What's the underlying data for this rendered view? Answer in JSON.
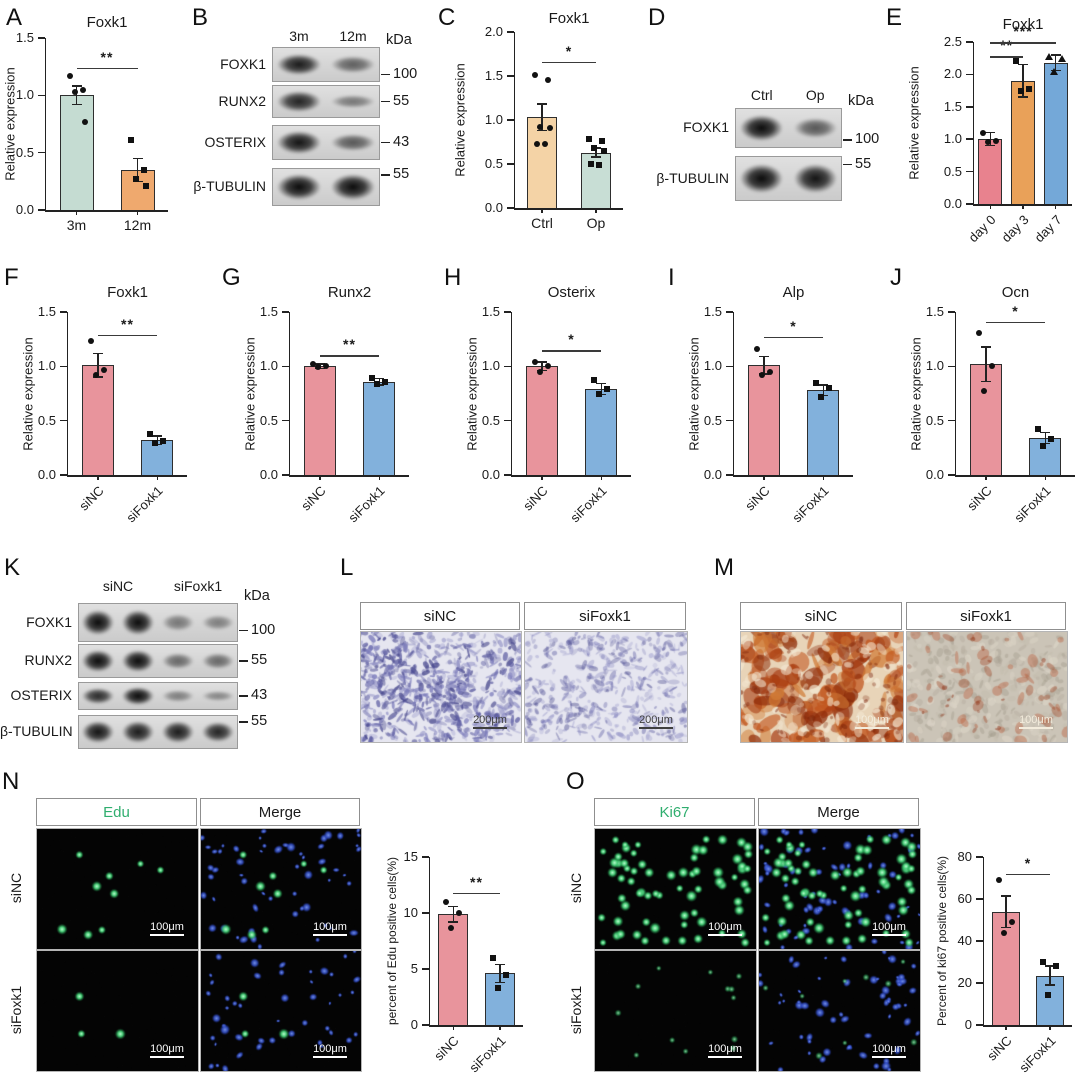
{
  "panels": {
    "A": {
      "letter": "A"
    },
    "B": {
      "letter": "B"
    },
    "C": {
      "letter": "C"
    },
    "D": {
      "letter": "D"
    },
    "E": {
      "letter": "E"
    },
    "F": {
      "letter": "F"
    },
    "G": {
      "letter": "G"
    },
    "H": {
      "letter": "H"
    },
    "I": {
      "letter": "I"
    },
    "J": {
      "letter": "J"
    },
    "K": {
      "letter": "K"
    },
    "L": {
      "letter": "L"
    },
    "M": {
      "letter": "M"
    },
    "N": {
      "letter": "N"
    },
    "O": {
      "letter": "O"
    }
  },
  "chart_data": [
    {
      "panel": "A",
      "type": "bar",
      "title": "Foxk1",
      "ylabel": "Relative expression",
      "ylim": [
        0,
        1.5
      ],
      "yticks": [
        "0.0",
        "0.5",
        "1.0",
        "1.5"
      ],
      "categories": [
        "3m",
        "12m"
      ],
      "values": [
        1.0,
        0.35
      ],
      "errors": [
        0.08,
        0.1
      ],
      "colors": [
        "#c5dcd2",
        "#efa96e"
      ],
      "outline": "#2e2e2e",
      "points": [
        [
          1.17,
          1.05,
          1.03,
          0.77
        ],
        [
          0.61,
          0.35,
          0.27,
          0.21
        ]
      ],
      "point_shapes": [
        "circle",
        "square"
      ],
      "sig": [
        {
          "from": 0,
          "to": 1,
          "y": 1.24,
          "label": "**"
        }
      ],
      "x_rotation": 0
    },
    {
      "panel": "C",
      "type": "bar",
      "title": "Foxk1",
      "ylabel": "Relative expression",
      "ylim": [
        0,
        2.0
      ],
      "yticks": [
        "0.0",
        "0.5",
        "1.0",
        "1.5",
        "2.0"
      ],
      "categories": [
        "Ctrl",
        "Op"
      ],
      "values": [
        1.03,
        0.63
      ],
      "errors": [
        0.15,
        0.05
      ],
      "colors": [
        "#f4d3a6",
        "#c8ded5"
      ],
      "outline": "#2e2e2e",
      "points": [
        [
          1.51,
          1.46,
          0.92,
          0.91,
          0.73,
          0.73
        ],
        [
          0.78,
          0.76,
          0.68,
          0.65,
          0.5,
          0.49
        ]
      ],
      "point_shapes": [
        "circle",
        "square"
      ],
      "sig": [
        {
          "from": 0,
          "to": 1,
          "y": 1.66,
          "label": "*"
        }
      ],
      "x_rotation": 0
    },
    {
      "panel": "E",
      "type": "bar",
      "title": "Foxk1",
      "ylabel": "Relative expression",
      "ylim": [
        0,
        2.5
      ],
      "yticks": [
        "0.0",
        "0.5",
        "1.0",
        "1.5",
        "2.0",
        "2.5"
      ],
      "categories": [
        "day 0",
        "day 3",
        "day 7"
      ],
      "values": [
        1.0,
        1.9,
        2.18
      ],
      "errors": [
        0.1,
        0.25,
        0.12
      ],
      "colors": [
        "#e8828e",
        "#e9a159",
        "#74a8d8"
      ],
      "outline": "#2e2e2e",
      "points": [
        [
          1.1,
          0.97,
          0.95
        ],
        [
          2.2,
          1.78,
          1.75
        ],
        [
          2.28,
          2.25,
          2.05
        ]
      ],
      "point_shapes": [
        "circle",
        "square",
        "triangle"
      ],
      "sig": [
        {
          "from": 0,
          "to": 1,
          "y": 2.28,
          "label": "**"
        },
        {
          "from": 0,
          "to": 2,
          "y": 2.5,
          "label": "***"
        }
      ],
      "x_rotation": 45
    },
    {
      "panel": "F",
      "type": "bar",
      "title": "Foxk1",
      "ylabel": "Relative expression",
      "ylim": [
        0,
        1.5
      ],
      "yticks": [
        "0.0",
        "0.5",
        "1.0",
        "1.5"
      ],
      "categories": [
        "siNC",
        "siFoxk1"
      ],
      "values": [
        1.01,
        0.32
      ],
      "errors": [
        0.11,
        0.04
      ],
      "colors": [
        "#e8949c",
        "#82b1dc"
      ],
      "outline": "#2e2e2e",
      "points": [
        [
          1.23,
          0.97,
          0.92
        ],
        [
          0.38,
          0.31,
          0.29
        ]
      ],
      "point_shapes": [
        "circle",
        "square"
      ],
      "sig": [
        {
          "from": 0,
          "to": 1,
          "y": 1.29,
          "label": "**"
        }
      ],
      "x_rotation": 45
    },
    {
      "panel": "G",
      "type": "bar",
      "title": "Runx2",
      "ylabel": "Relative expression",
      "ylim": [
        0,
        1.5
      ],
      "yticks": [
        "0.0",
        "0.5",
        "1.0",
        "1.5"
      ],
      "categories": [
        "siNC",
        "siFoxk1"
      ],
      "values": [
        1.0,
        0.86
      ],
      "errors": [
        0.02,
        0.03
      ],
      "colors": [
        "#e8949c",
        "#82b1dc"
      ],
      "outline": "#2e2e2e",
      "points": [
        [
          1.02,
          1.0,
          0.99
        ],
        [
          0.89,
          0.86,
          0.84
        ]
      ],
      "point_shapes": [
        "circle",
        "square"
      ],
      "sig": [
        {
          "from": 0,
          "to": 1,
          "y": 1.1,
          "label": "**"
        }
      ],
      "x_rotation": 45
    },
    {
      "panel": "H",
      "type": "bar",
      "title": "Osterix",
      "ylabel": "Relative expression",
      "ylim": [
        0,
        1.5
      ],
      "yticks": [
        "0.0",
        "0.5",
        "1.0",
        "1.5"
      ],
      "categories": [
        "siNC",
        "siFoxk1"
      ],
      "values": [
        1.0,
        0.79
      ],
      "errors": [
        0.04,
        0.05
      ],
      "colors": [
        "#e8949c",
        "#82b1dc"
      ],
      "outline": "#2e2e2e",
      "points": [
        [
          1.04,
          1.0,
          0.95
        ],
        [
          0.87,
          0.79,
          0.75
        ]
      ],
      "point_shapes": [
        "circle",
        "square"
      ],
      "sig": [
        {
          "from": 0,
          "to": 1,
          "y": 1.15,
          "label": "*"
        }
      ],
      "x_rotation": 45
    },
    {
      "panel": "I",
      "type": "bar",
      "title": "Alp",
      "ylabel": "Relative expression",
      "ylim": [
        0,
        1.5
      ],
      "yticks": [
        "0.0",
        "0.5",
        "1.0",
        "1.5"
      ],
      "categories": [
        "siNC",
        "siFoxk1"
      ],
      "values": [
        1.01,
        0.78
      ],
      "errors": [
        0.08,
        0.05
      ],
      "colors": [
        "#e8949c",
        "#82b1dc"
      ],
      "outline": "#2e2e2e",
      "points": [
        [
          1.16,
          0.95,
          0.92
        ],
        [
          0.85,
          0.8,
          0.72
        ]
      ],
      "point_shapes": [
        "circle",
        "square"
      ],
      "sig": [
        {
          "from": 0,
          "to": 1,
          "y": 1.27,
          "label": "*"
        }
      ],
      "x_rotation": 45
    },
    {
      "panel": "J",
      "type": "bar",
      "title": "Ocn",
      "ylabel": "Relative expression",
      "ylim": [
        0,
        1.5
      ],
      "yticks": [
        "0.0",
        "0.5",
        "1.0",
        "1.5"
      ],
      "categories": [
        "siNC",
        "siFoxk1"
      ],
      "values": [
        1.02,
        0.34
      ],
      "errors": [
        0.16,
        0.05
      ],
      "colors": [
        "#e8949c",
        "#82b1dc"
      ],
      "outline": "#2e2e2e",
      "points": [
        [
          1.31,
          1.0,
          0.77
        ],
        [
          0.42,
          0.33,
          0.27
        ]
      ],
      "point_shapes": [
        "circle",
        "square"
      ],
      "sig": [
        {
          "from": 0,
          "to": 1,
          "y": 1.41,
          "label": "*"
        }
      ],
      "x_rotation": 45
    },
    {
      "panel": "N",
      "type": "bar",
      "title": "",
      "ylabel": "percent of Edu positive cells(%)",
      "ylim": [
        0,
        15
      ],
      "yticks": [
        "0",
        "5",
        "10",
        "15"
      ],
      "categories": [
        "siNC",
        "siFoxk1"
      ],
      "values": [
        9.9,
        4.6
      ],
      "errors": [
        0.7,
        0.8
      ],
      "colors": [
        "#e8949c",
        "#82b1dc"
      ],
      "outline": "#2e2e2e",
      "points": [
        [
          11.0,
          10.0,
          8.7
        ],
        [
          6.0,
          4.5,
          3.3
        ]
      ],
      "point_shapes": [
        "circle",
        "square"
      ],
      "sig": [
        {
          "from": 0,
          "to": 1,
          "y": 11.8,
          "label": "**"
        }
      ],
      "x_rotation": 45
    },
    {
      "panel": "O",
      "type": "bar",
      "title": "",
      "ylabel": "Percent of ki67 positive cells(%)",
      "ylim": [
        0,
        80
      ],
      "yticks": [
        "0",
        "20",
        "40",
        "60",
        "80"
      ],
      "categories": [
        "siNC",
        "siFoxk1"
      ],
      "values": [
        54,
        23.5
      ],
      "errors": [
        7.5,
        4.5
      ],
      "colors": [
        "#e8949c",
        "#82b1dc"
      ],
      "outline": "#2e2e2e",
      "points": [
        [
          69,
          49,
          44
        ],
        [
          30,
          28,
          14.5
        ]
      ],
      "point_shapes": [
        "circle",
        "square"
      ],
      "sig": [
        {
          "from": 0,
          "to": 1,
          "y": 72,
          "label": "*"
        }
      ],
      "x_rotation": 45
    }
  ],
  "blots": [
    {
      "panel": "B",
      "kda_header": "kDa",
      "lane_labels": [
        {
          "text": "3m"
        },
        {
          "text": "12m"
        }
      ],
      "rows": [
        {
          "protein": "FOXK1",
          "kda": "100",
          "kdy": 10,
          "bands": [
            0.9,
            0.45
          ]
        },
        {
          "protein": "RUNX2",
          "kda": "55",
          "kdy": 0,
          "bands": [
            0.85,
            0.3
          ]
        },
        {
          "protein": "OSTERIX",
          "kda": "43",
          "kdy": 0,
          "bands": [
            0.95,
            0.5
          ]
        },
        {
          "protein": "β-TUBULIN",
          "kda": "55",
          "kdy": -12,
          "bands": [
            1.0,
            1.0
          ]
        }
      ]
    },
    {
      "panel": "D",
      "kda_header": "kDa",
      "lane_labels": [
        {
          "text": "Ctrl"
        },
        {
          "text": "Op"
        }
      ],
      "rows": [
        {
          "protein": "FOXK1",
          "kda": "100",
          "kdy": 12,
          "bands": [
            1.0,
            0.5
          ]
        },
        {
          "protein": "β-TUBULIN",
          "kda": "55",
          "kdy": -14,
          "bands": [
            1.0,
            0.95
          ]
        }
      ]
    },
    {
      "panel": "K",
      "kda_header": "kDa",
      "lane_labels": [
        {
          "text": "siNC",
          "span": 2
        },
        {
          "text": "siFoxk1",
          "span": 2
        }
      ],
      "rows": [
        {
          "protein": "FOXK1",
          "kda": "100",
          "kdy": 8,
          "bands": [
            1.0,
            1.0,
            0.3,
            0.25
          ]
        },
        {
          "protein": "RUNX2",
          "kda": "55",
          "kdy": 0,
          "bands": [
            1.0,
            1.0,
            0.4,
            0.4
          ]
        },
        {
          "protein": "OSTERIX",
          "kda": "43",
          "kdy": 0,
          "bands": [
            0.8,
            1.0,
            0.25,
            0.2
          ]
        },
        {
          "protein": "β-TUBULIN",
          "kda": "55",
          "kdy": -10,
          "bands": [
            0.95,
            0.9,
            0.9,
            0.85
          ]
        }
      ]
    }
  ],
  "microscopy": {
    "L": {
      "labels": [
        "siNC",
        "siFoxk1"
      ],
      "scale_bar": "200μm"
    },
    "M": {
      "labels": [
        "siNC",
        "siFoxk1"
      ],
      "scale_bar": "100μm"
    },
    "N": {
      "col_labels": [
        "Edu",
        "Merge"
      ],
      "row_labels": [
        "siNC",
        "siFoxk1"
      ],
      "scale_bar": "100μm",
      "marker_label_color": "#2fae6e"
    },
    "O": {
      "col_labels": [
        "Ki67",
        "Merge"
      ],
      "row_labels": [
        "siNC",
        "siFoxk1"
      ],
      "scale_bar": "100μm",
      "marker_label_color": "#2fae6e"
    }
  }
}
